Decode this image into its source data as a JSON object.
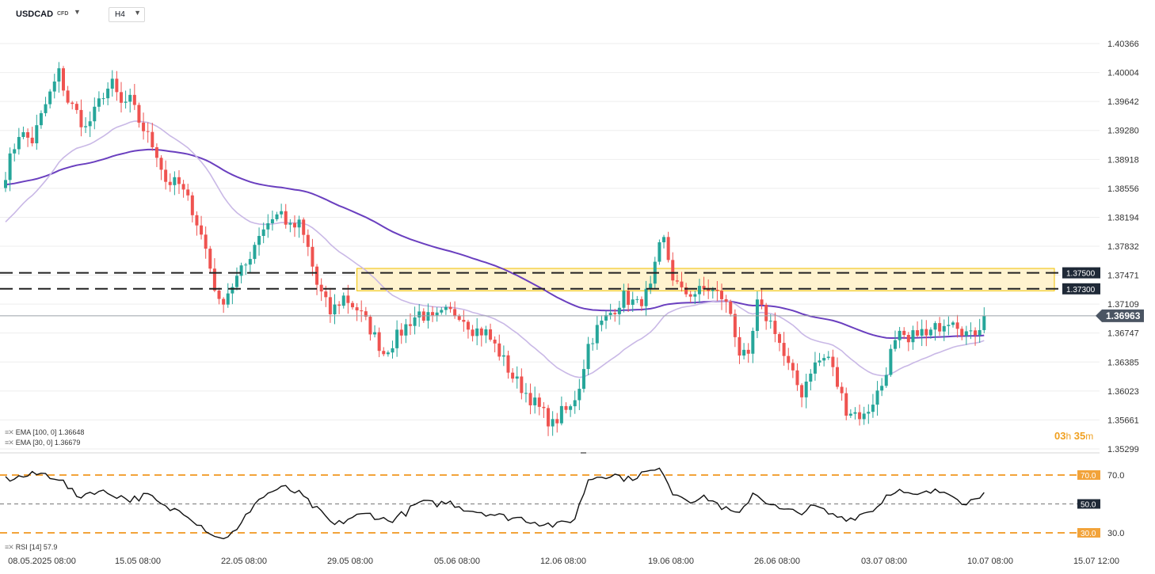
{
  "header": {
    "symbol": "USDCAD",
    "symbol_type": "CFD",
    "timeframe": "H4"
  },
  "legend": {
    "ema100": "EMA [100, 0] 1.36648",
    "ema30": "EMA [30, 0] 1.36679",
    "rsi": "RSI [14] 57.9"
  },
  "timer": {
    "hours": "03",
    "h": "h",
    "minutes": "35",
    "m": "m"
  },
  "colors": {
    "bull": "#26a69a",
    "bear": "#ef5350",
    "ema100": "#6a3fbf",
    "ema30": "#c9b8e6",
    "zone_fill": "#fff3cf",
    "zone_border": "#f0c200",
    "level_line": "#222222",
    "rsi_band": "#f2a33a",
    "price_tag": "#4b5563",
    "grid": "#eeeeee"
  },
  "chart_data": {
    "type": "candlestick",
    "symbol": "USDCAD",
    "timeframe": "H4",
    "y_ticks": [
      1.40366,
      1.40004,
      1.39642,
      1.3928,
      1.38918,
      1.38556,
      1.38194,
      1.37832,
      1.37471,
      1.37109,
      1.36747,
      1.36385,
      1.36023,
      1.35661,
      1.35299
    ],
    "ylim": [
      1.35299,
      1.40366
    ],
    "x_tick_labels": [
      "08.05.2025 08:00",
      "15.05 08:00",
      "22.05 08:00",
      "29.05 08:00",
      "05.06 08:00",
      "12.06 08:00",
      "19.06 08:00",
      "26.06 08:00",
      "03.07 08:00",
      "10.07 08:00",
      "15.07 12:00"
    ],
    "current_price": 1.36963,
    "levels": [
      {
        "price": 1.375,
        "label": "1.37500"
      },
      {
        "price": 1.373,
        "label": "1.37300"
      }
    ],
    "resistance_zone": [
      1.37275,
      1.37555
    ],
    "ema": [
      {
        "name": "EMA [100, 0]",
        "value": 1.36648
      },
      {
        "name": "EMA [30, 0]",
        "value": 1.36679
      }
    ],
    "rsi": {
      "period": 14,
      "value": 57.9,
      "levels": [
        70.0,
        50.0,
        30.0
      ],
      "level_labels": [
        "70.0",
        "50.0",
        "30.0"
      ],
      "axis_labels": [
        "70.0",
        "30.0"
      ]
    },
    "close_path": [
      [
        0,
        1.3875
      ],
      [
        3,
        1.3925
      ],
      [
        6,
        1.3915
      ],
      [
        9,
        1.396
      ],
      [
        12,
        1.4
      ],
      [
        14,
        1.3965
      ],
      [
        16,
        1.395
      ],
      [
        18,
        1.393
      ],
      [
        20,
        1.395
      ],
      [
        22,
        1.3975
      ],
      [
        24,
        1.3985
      ],
      [
        26,
        1.396
      ],
      [
        28,
        1.3965
      ],
      [
        30,
        1.394
      ],
      [
        32,
        1.392
      ],
      [
        34,
        1.39
      ],
      [
        36,
        1.3865
      ],
      [
        39,
        1.386
      ],
      [
        42,
        1.383
      ],
      [
        45,
        1.378
      ],
      [
        48,
        1.371
      ],
      [
        51,
        1.3735
      ],
      [
        54,
        1.376
      ],
      [
        57,
        1.38
      ],
      [
        60,
        1.382
      ],
      [
        62,
        1.3825
      ],
      [
        64,
        1.3805
      ],
      [
        66,
        1.381
      ],
      [
        68,
        1.378
      ],
      [
        70,
        1.3735
      ],
      [
        73,
        1.37
      ],
      [
        76,
        1.372
      ],
      [
        79,
        1.3705
      ],
      [
        82,
        1.368
      ],
      [
        85,
        1.365
      ],
      [
        88,
        1.367
      ],
      [
        91,
        1.369
      ],
      [
        93,
        1.37
      ],
      [
        96,
        1.369
      ],
      [
        99,
        1.37
      ],
      [
        102,
        1.37
      ],
      [
        105,
        1.368
      ],
      [
        108,
        1.3675
      ],
      [
        111,
        1.365
      ],
      [
        114,
        1.362
      ],
      [
        117,
        1.36
      ],
      [
        120,
        1.358
      ],
      [
        123,
        1.356
      ],
      [
        125,
        1.3575
      ],
      [
        127,
        1.358
      ],
      [
        129,
        1.361
      ],
      [
        131,
        1.366
      ],
      [
        133,
        1.368
      ],
      [
        136,
        1.37
      ],
      [
        139,
        1.372
      ],
      [
        142,
        1.371
      ],
      [
        145,
        1.373
      ],
      [
        147,
        1.378
      ],
      [
        148,
        1.379
      ],
      [
        150,
        1.3745
      ],
      [
        152,
        1.3725
      ],
      [
        155,
        1.3725
      ],
      [
        158,
        1.373
      ],
      [
        161,
        1.372
      ],
      [
        163,
        1.37
      ],
      [
        165,
        1.365
      ],
      [
        167,
        1.364
      ],
      [
        169,
        1.371
      ],
      [
        171,
        1.3695
      ],
      [
        173,
        1.368
      ],
      [
        175,
        1.3645
      ],
      [
        177,
        1.362
      ],
      [
        179,
        1.36
      ],
      [
        181,
        1.363
      ],
      [
        183,
        1.364
      ],
      [
        185,
        1.3645
      ],
      [
        187,
        1.361
      ],
      [
        189,
        1.358
      ],
      [
        191,
        1.3575
      ],
      [
        193,
        1.357
      ],
      [
        195,
        1.359
      ],
      [
        197,
        1.361
      ],
      [
        199,
        1.365
      ],
      [
        201,
        1.367
      ],
      [
        203,
        1.366
      ],
      [
        205,
        1.368
      ],
      [
        207,
        1.367
      ],
      [
        209,
        1.368
      ],
      [
        211,
        1.369
      ],
      [
        213,
        1.3695
      ],
      [
        215,
        1.368
      ],
      [
        217,
        1.367
      ],
      [
        219,
        1.3685
      ],
      [
        220,
        1.36963
      ]
    ],
    "rsi_path": [
      [
        0,
        67
      ],
      [
        4,
        69
      ],
      [
        8,
        71
      ],
      [
        12,
        68
      ],
      [
        16,
        55
      ],
      [
        20,
        59
      ],
      [
        24,
        57
      ],
      [
        28,
        53
      ],
      [
        32,
        56
      ],
      [
        36,
        47
      ],
      [
        40,
        45
      ],
      [
        44,
        35
      ],
      [
        48,
        26
      ],
      [
        52,
        31
      ],
      [
        56,
        51
      ],
      [
        60,
        59
      ],
      [
        63,
        61
      ],
      [
        66,
        57
      ],
      [
        70,
        46
      ],
      [
        74,
        35
      ],
      [
        78,
        41
      ],
      [
        82,
        43
      ],
      [
        86,
        38
      ],
      [
        90,
        44
      ],
      [
        93,
        51
      ],
      [
        96,
        50
      ],
      [
        100,
        51
      ],
      [
        104,
        46
      ],
      [
        108,
        44
      ],
      [
        112,
        41
      ],
      [
        116,
        40
      ],
      [
        120,
        37
      ],
      [
        124,
        35
      ],
      [
        128,
        40
      ],
      [
        131,
        67
      ],
      [
        134,
        70
      ],
      [
        137,
        70
      ],
      [
        140,
        67
      ],
      [
        143,
        71
      ],
      [
        146,
        73
      ],
      [
        148,
        72
      ],
      [
        150,
        58
      ],
      [
        154,
        53
      ],
      [
        158,
        54
      ],
      [
        162,
        46
      ],
      [
        165,
        42
      ],
      [
        168,
        58
      ],
      [
        170,
        54
      ],
      [
        174,
        46
      ],
      [
        178,
        44
      ],
      [
        182,
        48
      ],
      [
        186,
        42
      ],
      [
        190,
        40
      ],
      [
        194,
        45
      ],
      [
        196,
        48
      ],
      [
        198,
        56
      ],
      [
        200,
        60
      ],
      [
        204,
        55
      ],
      [
        208,
        58
      ],
      [
        212,
        59
      ],
      [
        214,
        55
      ],
      [
        216,
        49
      ],
      [
        218,
        55
      ],
      [
        220,
        57.9
      ]
    ]
  }
}
